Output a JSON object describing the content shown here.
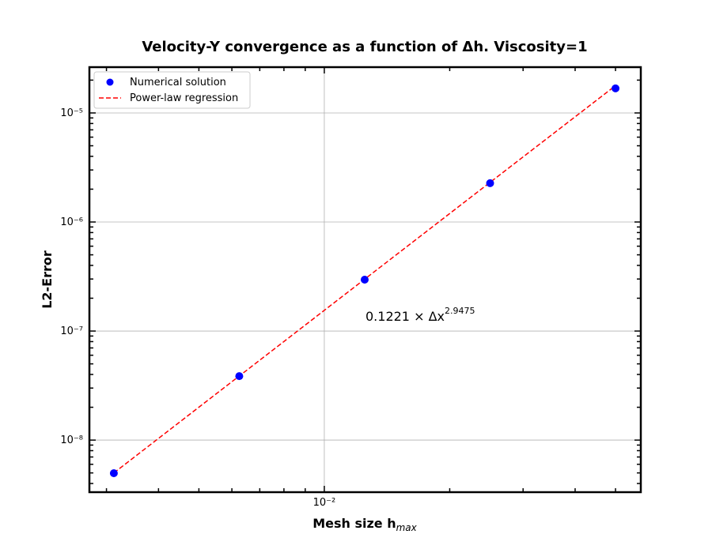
{
  "chart_data": {
    "type": "scatter",
    "title": "Velocity-Y convergence as a function of Δh. Viscosity=1",
    "xlabel": "Mesh size h",
    "xlabel_sub": "max",
    "ylabel": "L2-Error",
    "xscale": "log",
    "yscale": "log",
    "grid": true,
    "legend": "upper left",
    "xlim": [
      0.00273,
      0.0575
    ],
    "ylim": [
      3.33e-09,
      2.63e-05
    ],
    "xticks": [
      {
        "value": 0.01,
        "label": "10⁻²"
      }
    ],
    "yticks": [
      {
        "value": 1e-08,
        "label": "10⁻⁸"
      },
      {
        "value": 1e-07,
        "label": "10⁻⁷"
      },
      {
        "value": 1e-06,
        "label": "10⁻⁶"
      },
      {
        "value": 1e-05,
        "label": "10⁻⁵"
      }
    ],
    "xminorticks": [
      0.003,
      0.004,
      0.005,
      0.006,
      0.007,
      0.008,
      0.009,
      0.02,
      0.03,
      0.04,
      0.05
    ],
    "yminorticks": [
      4e-09,
      5e-09,
      6e-09,
      7e-09,
      8e-09,
      9e-09,
      2e-08,
      3e-08,
      4e-08,
      5e-08,
      6e-08,
      7e-08,
      8e-08,
      9e-08,
      2e-07,
      3e-07,
      4e-07,
      5e-07,
      6e-07,
      7e-07,
      8e-07,
      9e-07,
      2e-06,
      3e-06,
      4e-06,
      5e-06,
      6e-06,
      7e-06,
      8e-06,
      9e-06,
      2e-05
    ],
    "x": [
      0.003125,
      0.00625,
      0.0125,
      0.025,
      0.05
    ],
    "series": [
      {
        "name": "Numerical solution",
        "color": "#0000ff",
        "style": "marker",
        "values": [
          4.97e-09,
          3.86e-08,
          2.96e-07,
          2.27e-06,
          1.68e-05
        ]
      },
      {
        "name": "Power-law regression",
        "color": "#ff0000",
        "style": "dashed",
        "values": [
          5e-09,
          3.87e-08,
          2.99e-07,
          2.31e-06,
          1.78e-05
        ]
      }
    ],
    "annotation": {
      "text": "0.1221 × Δx",
      "superscript": "2.9475"
    }
  }
}
